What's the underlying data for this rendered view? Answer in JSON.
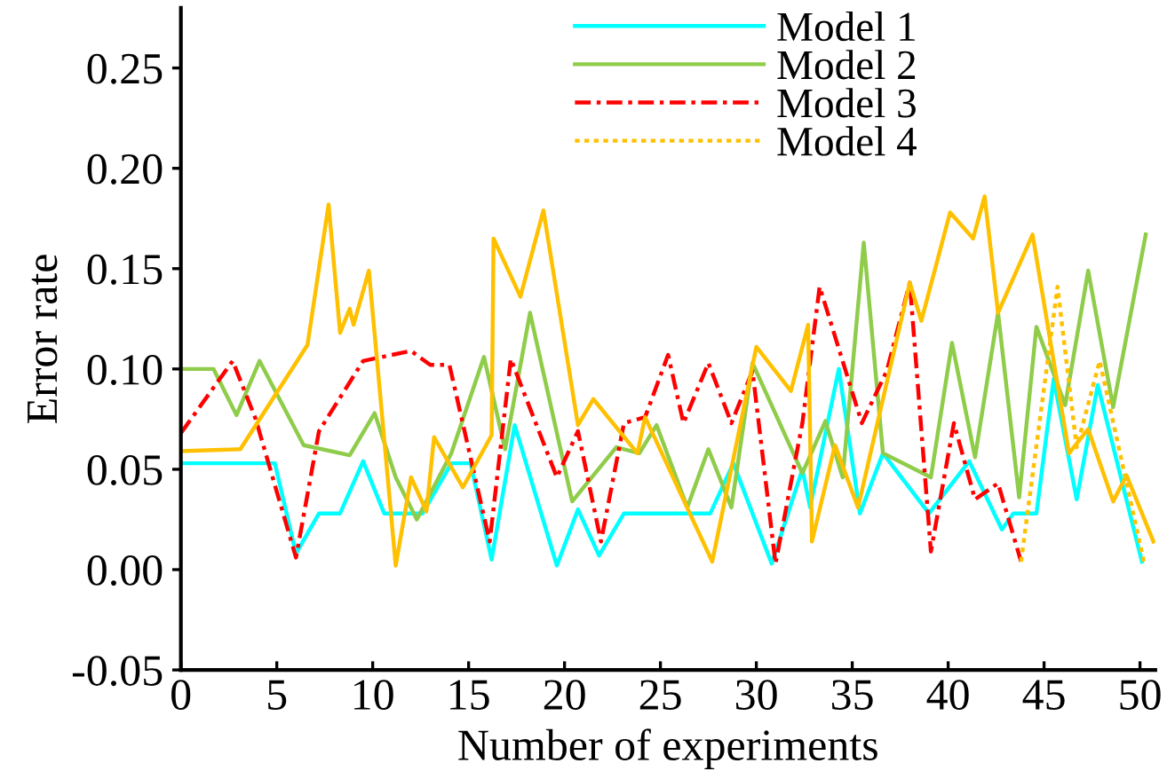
{
  "chart_data": {
    "type": "line",
    "xlabel": "Number of experiments",
    "ylabel": "Error rate",
    "xlim": [
      0,
      50.8
    ],
    "ylim": [
      -0.05,
      0.28
    ],
    "xticks": [
      0,
      5,
      10,
      15,
      20,
      25,
      30,
      35,
      40,
      45,
      50
    ],
    "yticks": [
      {
        "value": -0.05,
        "label": "-0.05"
      },
      {
        "value": 0,
        "label": "0.00"
      },
      {
        "value": 0.05,
        "label": "0.05"
      },
      {
        "value": 0.1,
        "label": "0.10"
      },
      {
        "value": 0.15,
        "label": "0.15"
      },
      {
        "value": 0.2,
        "label": "0.20"
      },
      {
        "value": 0.25,
        "label": "0.25"
      }
    ],
    "grid": false,
    "legend": "top",
    "marker": "none",
    "series": [
      {
        "name": "Model 1",
        "color": "#00ffff",
        "line_style": "solid",
        "x": [
          0,
          4.9,
          6.0,
          7.2,
          8.3,
          9.5,
          10.6,
          12.6,
          14.1,
          15.1,
          16.2,
          17.4,
          19.6,
          20.7,
          21.8,
          23.1,
          27.6,
          28.8,
          30.8,
          32.4,
          32.8,
          34.3,
          35.4,
          36.6,
          39.0,
          41.1,
          42.8,
          43.4,
          44.6,
          45.5,
          46.7,
          47.8,
          50.1
        ],
        "values": [
          0.053,
          0.053,
          0.008,
          0.028,
          0.028,
          0.054,
          0.028,
          0.028,
          0.053,
          0.053,
          0.005,
          0.072,
          0.002,
          0.03,
          0.007,
          0.028,
          0.028,
          0.053,
          0.003,
          0.05,
          0.031,
          0.1,
          0.028,
          0.058,
          0.028,
          0.054,
          0.02,
          0.028,
          0.028,
          0.095,
          0.035,
          0.092,
          0.004
        ]
      },
      {
        "name": "Model 2",
        "color": "#8fcc4a",
        "line_style": "solid",
        "x": [
          0,
          1.7,
          2.9,
          4.1,
          6.4,
          8.8,
          10.1,
          11.2,
          12.3,
          14.1,
          15.8,
          16.9,
          18.2,
          20.4,
          22.7,
          23.9,
          24.8,
          26.4,
          27.5,
          28.7,
          29.8,
          32.4,
          33.6,
          34.5,
          35.6,
          36.6,
          39.1,
          40.2,
          41.4,
          42.6,
          43.7,
          44.6,
          46.1,
          47.3,
          48.6,
          50.3
        ],
        "values": [
          0.1,
          0.1,
          0.077,
          0.104,
          0.062,
          0.057,
          0.078,
          0.046,
          0.025,
          0.058,
          0.106,
          0.06,
          0.128,
          0.034,
          0.061,
          0.058,
          0.072,
          0.031,
          0.06,
          0.031,
          0.103,
          0.048,
          0.074,
          0.046,
          0.163,
          0.058,
          0.046,
          0.113,
          0.056,
          0.128,
          0.036,
          0.121,
          0.082,
          0.149,
          0.081,
          0.167
        ]
      },
      {
        "name": "Model 3",
        "color": "#ff0000",
        "line_style": "dashed",
        "x": [
          0,
          2.7,
          3.9,
          6.0,
          7.2,
          9.5,
          12.0,
          13.0,
          14.0,
          16.1,
          17.2,
          19.6,
          20.7,
          21.9,
          23.1,
          24.2,
          25.4,
          26.2,
          27.5,
          28.7,
          29.8,
          31.0,
          32.4,
          33.3,
          35.5,
          36.8,
          38.0,
          39.1,
          40.3,
          41.4,
          42.6,
          43.8
        ],
        "values": [
          0.068,
          0.104,
          0.075,
          0.006,
          0.069,
          0.104,
          0.109,
          0.102,
          0.102,
          0.014,
          0.105,
          0.046,
          0.069,
          0.014,
          0.073,
          0.076,
          0.107,
          0.073,
          0.103,
          0.073,
          0.099,
          0.003,
          0.073,
          0.141,
          0.073,
          0.099,
          0.143,
          0.009,
          0.073,
          0.035,
          0.043,
          0.004
        ]
      },
      {
        "name": "Model 4",
        "color": "#ffc000",
        "line_style": "dotted",
        "x": [
          43.8,
          45.7,
          46.7,
          47.9,
          50.2
        ],
        "values": [
          0.004,
          0.141,
          0.061,
          0.104,
          0.004
        ]
      },
      {
        "color": "#ffc000",
        "line_style": "solid",
        "x": [
          0,
          3.1,
          6.6,
          7.7,
          8.3,
          8.8,
          9.0,
          9.8,
          11.2,
          12.0,
          12.8,
          13.2,
          14.7,
          16.2,
          16.3,
          17.7,
          18.9,
          20.7,
          21.5,
          23.8,
          24.2,
          27.7,
          30.0,
          31.8,
          32.7,
          32.9,
          34.1,
          35.3,
          38.0,
          38.6,
          40.1,
          41.3,
          41.9,
          42.6,
          44.4,
          46.3,
          47.3,
          48.6,
          49.3,
          50.7
        ],
        "values": [
          0.059,
          0.06,
          0.112,
          0.182,
          0.118,
          0.13,
          0.122,
          0.149,
          0.002,
          0.046,
          0.029,
          0.066,
          0.041,
          0.067,
          0.165,
          0.136,
          0.179,
          0.072,
          0.085,
          0.058,
          0.076,
          0.004,
          0.111,
          0.089,
          0.122,
          0.014,
          0.062,
          0.031,
          0.143,
          0.124,
          0.178,
          0.165,
          0.186,
          0.128,
          0.167,
          0.058,
          0.07,
          0.034,
          0.047,
          0.014
        ]
      }
    ]
  }
}
